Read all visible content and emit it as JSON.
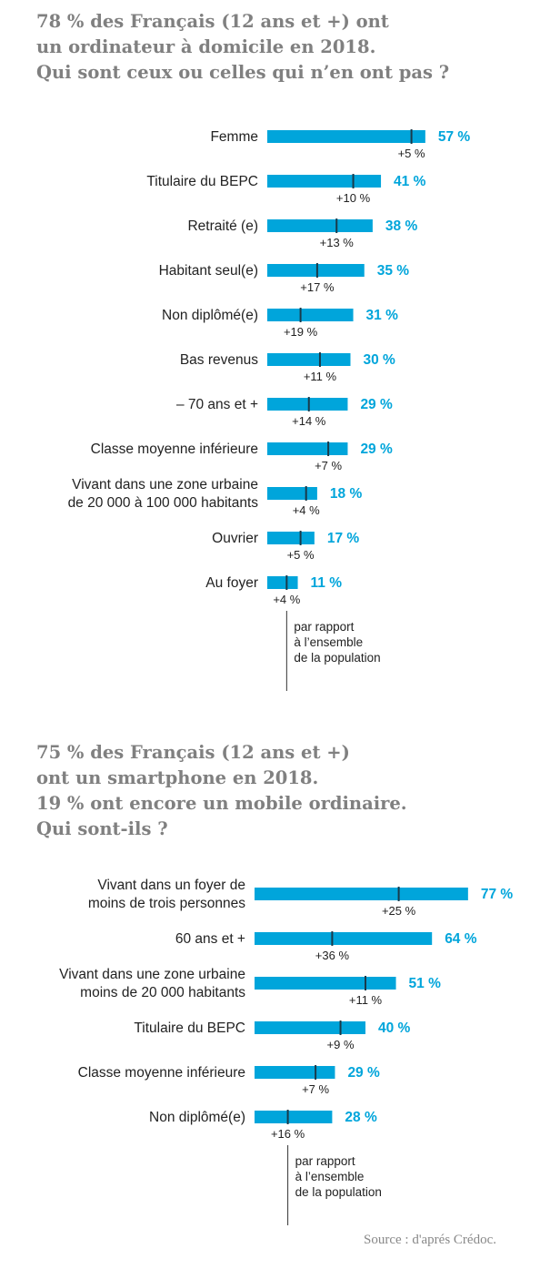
{
  "colors": {
    "bar": "#00a5db",
    "marker": "#1a3a4a",
    "value": "#00a5db",
    "text": "#222222",
    "title": "#808080"
  },
  "section1": {
    "title_lines": [
      "78 % des Français (12 ans et +) ont",
      "un ordinateur à domicile en 2018.",
      "Qui sont ceux ou celles qui  n’en ont pas ?"
    ]
  },
  "section2": {
    "title_lines": [
      "75 % des Français (12 ans et +)",
      "ont un smartphone en 2018.",
      "19 % ont encore un mobile ordinaire.",
      "Qui sont-ils ?"
    ]
  },
  "source": "Source : d'aprés Crédoc.",
  "chart_data": [
    {
      "type": "bar",
      "orientation": "horizontal",
      "categories": [
        [
          "Femme"
        ],
        [
          "Titulaire du BEPC"
        ],
        [
          "Retraité (e)"
        ],
        [
          "Habitant seul(e)"
        ],
        [
          "Non diplômé(e)"
        ],
        [
          "Bas revenus"
        ],
        [
          "– 70 ans et +"
        ],
        [
          "Classe moyenne inférieure"
        ],
        [
          "Vivant dans une zone urbaine",
          "de 20 000 à 100 000 habitants"
        ],
        [
          "Ouvrier"
        ],
        [
          "Au foyer"
        ]
      ],
      "values": [
        57,
        41,
        38,
        35,
        31,
        30,
        29,
        29,
        18,
        17,
        11
      ],
      "value_labels": [
        "57 %",
        "41 %",
        "38 %",
        "35 %",
        "31 %",
        "30 %",
        "29 %",
        "29 %",
        "18 %",
        "17 %",
        "11 %"
      ],
      "differences": [
        5,
        10,
        13,
        17,
        19,
        11,
        14,
        7,
        4,
        5,
        4
      ],
      "difference_labels": [
        "+5 %",
        "+10 %",
        "+13 %",
        "+17 %",
        "+19 %",
        "+11 %",
        "+14 %",
        "+7 %",
        "+4 %",
        "+5 %",
        "+4 %"
      ],
      "note_lines": [
        "par rapport",
        "à l’ensemble",
        "de la population"
      ]
    },
    {
      "type": "bar",
      "orientation": "horizontal",
      "categories": [
        [
          "Vivant dans un foyer de",
          "moins de trois personnes"
        ],
        [
          "60 ans et +"
        ],
        [
          "Vivant dans une zone urbaine",
          "moins de 20 000 habitants"
        ],
        [
          "Titulaire du BEPC"
        ],
        [
          "Classe moyenne inférieure"
        ],
        [
          "Non diplômé(e)"
        ]
      ],
      "values": [
        77,
        64,
        51,
        40,
        29,
        28
      ],
      "value_labels": [
        "77 %",
        "64 %",
        "51 %",
        "40 %",
        "29 %",
        "28 %"
      ],
      "differences": [
        25,
        36,
        11,
        9,
        7,
        16
      ],
      "difference_labels": [
        "+25 %",
        "+36 %",
        "+11 %",
        "+9 %",
        "+7 %",
        "+16 %"
      ],
      "note_lines": [
        "par rapport",
        "à l’ensemble",
        "de la population"
      ]
    }
  ]
}
